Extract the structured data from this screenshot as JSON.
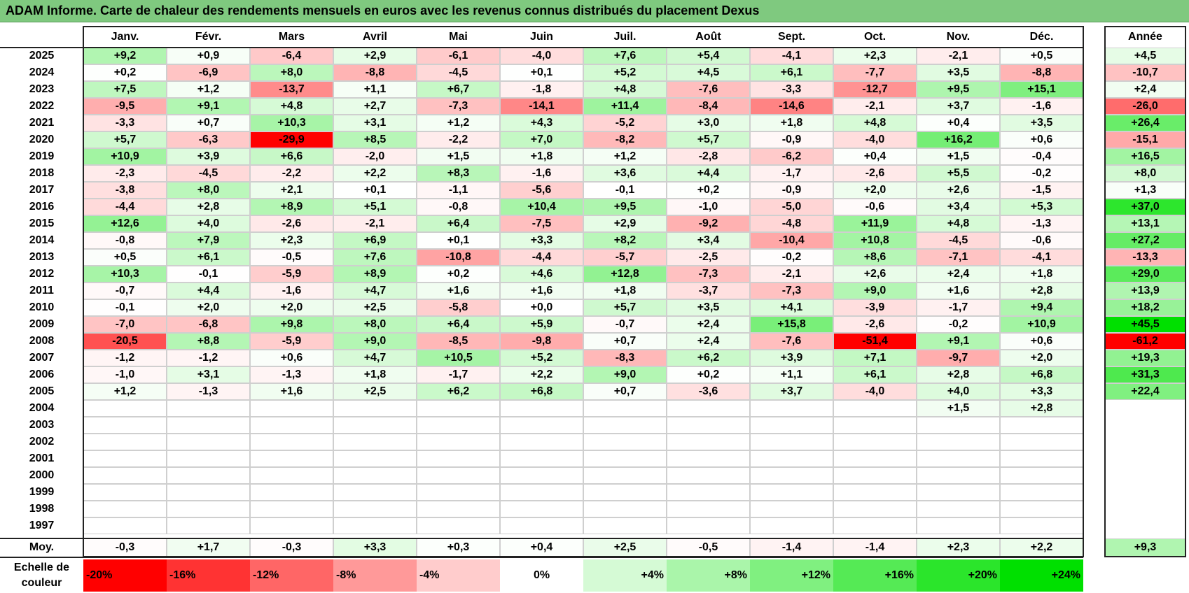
{
  "title": "ADAM Informe. Carte de chaleur des rendements mensuels en euros avec les revenus connus distribués du placement Dexus",
  "chart_data": {
    "type": "heatmap",
    "months": [
      "Janv.",
      "Févr.",
      "Mars",
      "Avril",
      "Mai",
      "Juin",
      "Juil.",
      "Août",
      "Sept.",
      "Oct.",
      "Nov.",
      "Déc."
    ],
    "year_header": "Année",
    "rows": [
      {
        "year": "2025",
        "values": [
          "+9,2",
          "+0,9",
          "-6,4",
          "+2,9",
          "-6,1",
          "-4,0",
          "+7,6",
          "+5,4",
          "-4,1",
          "+2,3",
          "-2,1",
          "+0,5"
        ],
        "annual": "+4,5"
      },
      {
        "year": "2024",
        "values": [
          "+0,2",
          "-6,9",
          "+8,0",
          "-8,8",
          "-4,5",
          "+0,1",
          "+5,2",
          "+4,5",
          "+6,1",
          "-7,7",
          "+3,5",
          "-8,8"
        ],
        "annual": "-10,7"
      },
      {
        "year": "2023",
        "values": [
          "+7,5",
          "+1,2",
          "-13,7",
          "+1,1",
          "+6,7",
          "-1,8",
          "+4,8",
          "-7,6",
          "-3,3",
          "-12,7",
          "+9,5",
          "+15,1"
        ],
        "annual": "+2,4"
      },
      {
        "year": "2022",
        "values": [
          "-9,5",
          "+9,1",
          "+4,8",
          "+2,7",
          "-7,3",
          "-14,1",
          "+11,4",
          "-8,4",
          "-14,6",
          "-2,1",
          "+3,7",
          "-1,6"
        ],
        "annual": "-26,0"
      },
      {
        "year": "2021",
        "values": [
          "-3,3",
          "+0,7",
          "+10,3",
          "+3,1",
          "+1,2",
          "+4,3",
          "-5,2",
          "+3,0",
          "+1,8",
          "+4,8",
          "+0,4",
          "+3,5"
        ],
        "annual": "+26,4"
      },
      {
        "year": "2020",
        "values": [
          "+5,7",
          "-6,3",
          "-29,9",
          "+8,5",
          "-2,2",
          "+7,0",
          "-8,2",
          "+5,7",
          "-0,9",
          "-4,0",
          "+16,2",
          "+0,6"
        ],
        "annual": "-15,1"
      },
      {
        "year": "2019",
        "values": [
          "+10,9",
          "+3,9",
          "+6,6",
          "-2,0",
          "+1,5",
          "+1,8",
          "+1,2",
          "-2,8",
          "-6,2",
          "+0,4",
          "+1,5",
          "-0,4"
        ],
        "annual": "+16,5"
      },
      {
        "year": "2018",
        "values": [
          "-2,3",
          "-4,5",
          "-2,2",
          "+2,2",
          "+8,3",
          "-1,6",
          "+3,6",
          "+4,4",
          "-1,7",
          "-2,6",
          "+5,5",
          "-0,2"
        ],
        "annual": "+8,0"
      },
      {
        "year": "2017",
        "values": [
          "-3,8",
          "+8,0",
          "+2,1",
          "+0,1",
          "-1,1",
          "-5,6",
          "-0,1",
          "+0,2",
          "-0,9",
          "+2,0",
          "+2,6",
          "-1,5"
        ],
        "annual": "+1,3"
      },
      {
        "year": "2016",
        "values": [
          "-4,4",
          "+2,8",
          "+8,9",
          "+5,1",
          "-0,8",
          "+10,4",
          "+9,5",
          "-1,0",
          "-5,0",
          "-0,6",
          "+3,4",
          "+5,3"
        ],
        "annual": "+37,0"
      },
      {
        "year": "2015",
        "values": [
          "+12,6",
          "+4,0",
          "-2,6",
          "-2,1",
          "+6,4",
          "-7,5",
          "+2,9",
          "-9,2",
          "-4,8",
          "+11,9",
          "+4,8",
          "-1,3"
        ],
        "annual": "+13,1"
      },
      {
        "year": "2014",
        "values": [
          "-0,8",
          "+7,9",
          "+2,3",
          "+6,9",
          "+0,1",
          "+3,3",
          "+8,2",
          "+3,4",
          "-10,4",
          "+10,8",
          "-4,5",
          "-0,6"
        ],
        "annual": "+27,2"
      },
      {
        "year": "2013",
        "values": [
          "+0,5",
          "+6,1",
          "-0,5",
          "+7,6",
          "-10,8",
          "-4,4",
          "-5,7",
          "-2,5",
          "-0,2",
          "+8,6",
          "-7,1",
          "-4,1"
        ],
        "annual": "-13,3"
      },
      {
        "year": "2012",
        "values": [
          "+10,3",
          "-0,1",
          "-5,9",
          "+8,9",
          "+0,2",
          "+4,6",
          "+12,8",
          "-7,3",
          "-2,1",
          "+2,6",
          "+2,4",
          "+1,8"
        ],
        "annual": "+29,0"
      },
      {
        "year": "2011",
        "values": [
          "-0,7",
          "+4,4",
          "-1,6",
          "+4,7",
          "+1,6",
          "+1,6",
          "+1,8",
          "-3,7",
          "-7,3",
          "+9,0",
          "+1,6",
          "+2,8"
        ],
        "annual": "+13,9"
      },
      {
        "year": "2010",
        "values": [
          "-0,1",
          "+2,0",
          "+2,0",
          "+2,5",
          "-5,8",
          "+0,0",
          "+5,7",
          "+3,5",
          "+4,1",
          "-3,9",
          "-1,7",
          "+9,4"
        ],
        "annual": "+18,2"
      },
      {
        "year": "2009",
        "values": [
          "-7,0",
          "-6,8",
          "+9,8",
          "+8,0",
          "+6,4",
          "+5,9",
          "-0,7",
          "+2,4",
          "+15,8",
          "-2,6",
          "-0,2",
          "+10,9"
        ],
        "annual": "+45,5"
      },
      {
        "year": "2008",
        "values": [
          "-20,5",
          "+8,8",
          "-5,9",
          "+9,0",
          "-8,5",
          "-9,8",
          "+0,7",
          "+2,4",
          "-7,6",
          "-51,4",
          "+9,1",
          "+0,6"
        ],
        "annual": "-61,2"
      },
      {
        "year": "2007",
        "values": [
          "-1,2",
          "-1,2",
          "+0,6",
          "+4,7",
          "+10,5",
          "+5,2",
          "-8,3",
          "+6,2",
          "+3,9",
          "+7,1",
          "-9,7",
          "+2,0"
        ],
        "annual": "+19,3"
      },
      {
        "year": "2006",
        "values": [
          "-1,0",
          "+3,1",
          "-1,3",
          "+1,8",
          "-1,7",
          "+2,2",
          "+9,0",
          "+0,2",
          "+1,1",
          "+6,1",
          "+2,8",
          "+6,8"
        ],
        "annual": "+31,3"
      },
      {
        "year": "2005",
        "values": [
          "+1,2",
          "-1,3",
          "+1,6",
          "+2,5",
          "+6,2",
          "+6,8",
          "+0,7",
          "-3,6",
          "+3,7",
          "-4,0",
          "+4,0",
          "+3,3"
        ],
        "annual": "+22,4"
      },
      {
        "year": "2004",
        "values": [
          "",
          "",
          "",
          "",
          "",
          "",
          "",
          "",
          "",
          "",
          "+1,5",
          "+2,8"
        ],
        "annual": ""
      },
      {
        "year": "2003",
        "values": [
          "",
          "",
          "",
          "",
          "",
          "",
          "",
          "",
          "",
          "",
          "",
          ""
        ],
        "annual": ""
      },
      {
        "year": "2002",
        "values": [
          "",
          "",
          "",
          "",
          "",
          "",
          "",
          "",
          "",
          "",
          "",
          ""
        ],
        "annual": ""
      },
      {
        "year": "2001",
        "values": [
          "",
          "",
          "",
          "",
          "",
          "",
          "",
          "",
          "",
          "",
          "",
          ""
        ],
        "annual": ""
      },
      {
        "year": "2000",
        "values": [
          "",
          "",
          "",
          "",
          "",
          "",
          "",
          "",
          "",
          "",
          "",
          ""
        ],
        "annual": ""
      },
      {
        "year": "1999",
        "values": [
          "",
          "",
          "",
          "",
          "",
          "",
          "",
          "",
          "",
          "",
          "",
          ""
        ],
        "annual": ""
      },
      {
        "year": "1998",
        "values": [
          "",
          "",
          "",
          "",
          "",
          "",
          "",
          "",
          "",
          "",
          "",
          ""
        ],
        "annual": ""
      },
      {
        "year": "1997",
        "values": [
          "",
          "",
          "",
          "",
          "",
          "",
          "",
          "",
          "",
          "",
          "",
          ""
        ],
        "annual": ""
      }
    ],
    "average": {
      "label": "Moy.",
      "values": [
        "-0,3",
        "+1,7",
        "-0,3",
        "+3,3",
        "+0,3",
        "+0,4",
        "+2,5",
        "-0,5",
        "-1,4",
        "-1,4",
        "+2,3",
        "+2,2"
      ],
      "annual": "+9,3"
    },
    "legend": {
      "label": "Echelle de couleur",
      "stops": [
        "-20%",
        "-16%",
        "-12%",
        "-8%",
        "-4%",
        "0%",
        "+4%",
        "+8%",
        "+12%",
        "+16%",
        "+20%",
        "+24%"
      ]
    },
    "colors": {
      "negative_max": "#ff0000",
      "neutral": "#ffffff",
      "positive_max": "#00e000",
      "title_bg": "#7fc97f"
    }
  }
}
